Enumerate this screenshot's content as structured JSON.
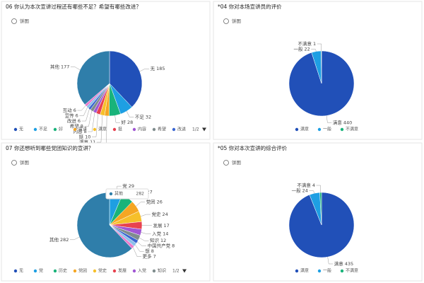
{
  "chart_data": [
    {
      "type": "pie",
      "title": "06 你认为本次宣讲过程还有哪些不足？希望有哪些改进？",
      "subtitle": "饼图",
      "categories": [
        "无",
        "不足",
        "好",
        "宣讲",
        "满意",
        "挺",
        "内容",
        "希望",
        "改进",
        "宣传",
        "互动",
        "其他"
      ],
      "values": [
        185,
        32,
        28,
        11,
        11,
        10,
        8,
        8,
        6,
        6,
        6,
        177
      ],
      "colors": [
        "#2150b8",
        "#1e9fe3",
        "#19b37a",
        "#f5a623",
        "#f6c02a",
        "#e8424f",
        "#a056d4",
        "#7f8c8d",
        "#3b66d1",
        "#8cc0ea",
        "#ea7ccc",
        "#2f7eaa"
      ],
      "legend": [
        {
          "name": "无",
          "color": "#2150b8"
        },
        {
          "name": "不足",
          "color": "#1e9fe3"
        },
        {
          "name": "好",
          "color": "#19b37a"
        },
        {
          "name": "宣讲",
          "color": "#f5a623"
        },
        {
          "name": "满意",
          "color": "#f6c02a"
        },
        {
          "name": "挺",
          "color": "#e8424f"
        },
        {
          "name": "内容",
          "color": "#a056d4"
        },
        {
          "name": "希望",
          "color": "#7f8c8d"
        },
        {
          "name": "改进",
          "color": "#3b66d1"
        }
      ],
      "legend_page": "1/2"
    },
    {
      "type": "pie",
      "title": "*04 你对本场宣讲员的评价",
      "subtitle": "饼图",
      "categories": [
        "满意",
        "一般",
        "不满意"
      ],
      "values": [
        440,
        22,
        1
      ],
      "colors": [
        "#2150b8",
        "#1e9fe3",
        "#19b37a"
      ],
      "legend": [
        {
          "name": "满意",
          "color": "#2150b8"
        },
        {
          "name": "一般",
          "color": "#1e9fe3"
        },
        {
          "name": "不满意",
          "color": "#19b37a"
        }
      ]
    },
    {
      "type": "pie",
      "title": "07 你还想听到哪些党团知识的宣讲？",
      "subtitle": "饼图",
      "categories": [
        "党",
        "历史",
        "党团",
        "党史",
        "发展",
        "入党",
        "知识",
        "中国共产党",
        "想",
        "更多",
        "其他"
      ],
      "values": [
        29,
        27,
        26,
        24,
        17,
        14,
        12,
        8,
        8,
        7,
        282
      ],
      "colors": [
        "#1e9fe3",
        "#19b37a",
        "#f5a623",
        "#f6c02a",
        "#e8424f",
        "#a056d4",
        "#7f8c8d",
        "#3b66d1",
        "#8cc0ea",
        "#ea7ccc",
        "#2f7eaa"
      ],
      "legend": [
        {
          "name": "无",
          "color": "#2150b8"
        },
        {
          "name": "党",
          "color": "#1e9fe3"
        },
        {
          "name": "历史",
          "color": "#19b37a"
        },
        {
          "name": "党团",
          "color": "#f5a623"
        },
        {
          "name": "党史",
          "color": "#f6c02a"
        },
        {
          "name": "发展",
          "color": "#e8424f"
        },
        {
          "name": "入党",
          "color": "#a056d4"
        },
        {
          "name": "知识",
          "color": "#7f8c8d"
        }
      ],
      "legend_page": "1/2",
      "tooltip": {
        "name": "其他",
        "value": 282
      }
    },
    {
      "type": "pie",
      "title": "*05 你对本次宣讲的综合评价",
      "subtitle": "饼图",
      "categories": [
        "满意",
        "一般",
        "不满意"
      ],
      "values": [
        435,
        24,
        4
      ],
      "colors": [
        "#2150b8",
        "#1e9fe3",
        "#19b37a"
      ],
      "legend": [
        {
          "name": "满意",
          "color": "#2150b8"
        },
        {
          "name": "一般",
          "color": "#1e9fe3"
        },
        {
          "name": "不满意",
          "color": "#19b37a"
        }
      ]
    }
  ]
}
